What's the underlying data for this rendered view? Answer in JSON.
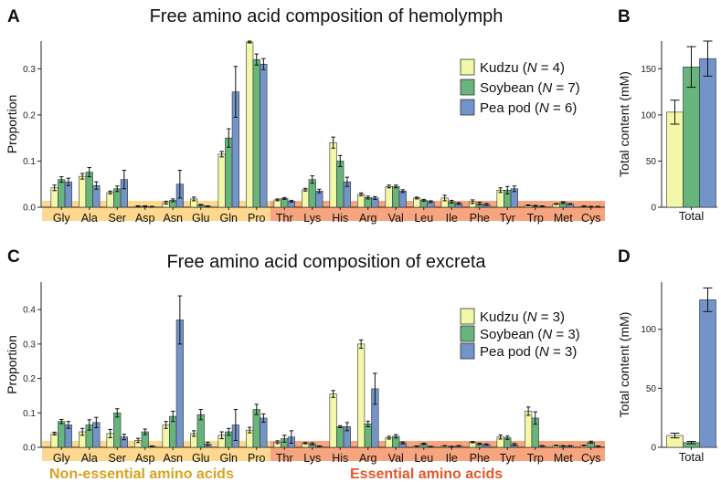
{
  "colors": {
    "kudzu": "#f3f7a8",
    "soybean": "#67b47c",
    "peapod": "#7394c8",
    "nonessential_band": "#fdd88e",
    "essential_band": "#f7a57e",
    "nonessential_text": "#d8a21c",
    "essential_text": "#e5572a"
  },
  "labels": {
    "nonessential": "Non-essential amino acids",
    "essential": "Essential amino acids"
  },
  "chart_data": [
    {
      "panel": "A",
      "type": "bar",
      "title": "Free amino acid composition of hemolymph",
      "ylabel": "Proportion",
      "xlabel": "",
      "ylim": [
        0,
        0.36
      ],
      "yticks": [
        "0.0",
        "0.1",
        "0.2",
        "0.3"
      ],
      "categories": [
        "Gly",
        "Ala",
        "Ser",
        "Asp",
        "Asn",
        "Glu",
        "Gln",
        "Pro",
        "Thr",
        "Lys",
        "His",
        "Arg",
        "Val",
        "Leu",
        "Ile",
        "Phe",
        "Tyr",
        "Trp",
        "Met",
        "Cys"
      ],
      "legend": {
        "position": "top-right",
        "entries": [
          {
            "pre": "Kudzu (",
            "n": "N",
            "post": " = 4)"
          },
          {
            "pre": "Soybean (",
            "n": "N",
            "post": " = 7)"
          },
          {
            "pre": "Pea pod (",
            "n": "N",
            "post": " = 6)"
          }
        ]
      },
      "series": [
        {
          "values": [
            0.042,
            0.067,
            0.032,
            0.002,
            0.01,
            0.018,
            0.115,
            0.358,
            0.016,
            0.038,
            0.14,
            0.028,
            0.045,
            0.02,
            0.02,
            0.012,
            0.037,
            0.004,
            0.007,
            0.002
          ],
          "errors": [
            0.006,
            0.006,
            0.003,
            0.001,
            0.003,
            0.004,
            0.006,
            0.002,
            0.002,
            0.003,
            0.012,
            0.003,
            0.003,
            0.002,
            0.006,
            0.004,
            0.005,
            0.001,
            0.001,
            0.001
          ]
        },
        {
          "values": [
            0.06,
            0.076,
            0.04,
            0.002,
            0.015,
            0.005,
            0.15,
            0.32,
            0.019,
            0.06,
            0.1,
            0.021,
            0.045,
            0.015,
            0.012,
            0.008,
            0.037,
            0.003,
            0.01,
            0.001
          ],
          "errors": [
            0.006,
            0.01,
            0.006,
            0.001,
            0.003,
            0.001,
            0.02,
            0.012,
            0.002,
            0.008,
            0.012,
            0.003,
            0.003,
            0.002,
            0.003,
            0.003,
            0.008,
            0.001,
            0.002,
            0.001
          ]
        },
        {
          "values": [
            0.055,
            0.047,
            0.06,
            0.001,
            0.05,
            0.002,
            0.25,
            0.31,
            0.013,
            0.035,
            0.055,
            0.02,
            0.035,
            0.012,
            0.008,
            0.006,
            0.04,
            0.002,
            0.007,
            0.001
          ],
          "errors": [
            0.008,
            0.008,
            0.02,
            0.001,
            0.03,
            0.001,
            0.055,
            0.012,
            0.002,
            0.004,
            0.01,
            0.003,
            0.003,
            0.002,
            0.002,
            0.002,
            0.006,
            0.001,
            0.001,
            0.001
          ]
        }
      ]
    },
    {
      "panel": "B",
      "type": "bar",
      "title": "",
      "ylabel": "Total content (mM)",
      "xlabel": "",
      "ylim": [
        0,
        180
      ],
      "yticks": [
        "0",
        "50",
        "100",
        "150"
      ],
      "categories": [
        "Total"
      ],
      "series": [
        {
          "values": [
            103
          ],
          "errors": [
            13
          ]
        },
        {
          "values": [
            152
          ],
          "errors": [
            22
          ]
        },
        {
          "values": [
            161
          ],
          "errors": [
            19
          ]
        }
      ]
    },
    {
      "panel": "C",
      "type": "bar",
      "title": "Free amino acid composition of excreta",
      "ylabel": "Proportion",
      "xlabel": "",
      "ylim": [
        0,
        0.48
      ],
      "yticks": [
        "0.0",
        "0.1",
        "0.2",
        "0.3",
        "0.4"
      ],
      "categories": [
        "Gly",
        "Ala",
        "Ser",
        "Asp",
        "Asn",
        "Glu",
        "Gln",
        "Pro",
        "Thr",
        "Lys",
        "His",
        "Arg",
        "Val",
        "Leu",
        "Ile",
        "Phe",
        "Tyr",
        "Trp",
        "Met",
        "Cys"
      ],
      "legend": {
        "position": "top-right",
        "entries": [
          {
            "pre": "Kudzu (",
            "n": "N",
            "post": " = 3)"
          },
          {
            "pre": "Soybean (",
            "n": "N",
            "post": " = 3)"
          },
          {
            "pre": "Pea pod (",
            "n": "N",
            "post": " = 3)"
          }
        ]
      },
      "series": [
        {
          "values": [
            0.04,
            0.045,
            0.04,
            0.02,
            0.065,
            0.04,
            0.035,
            0.05,
            0.015,
            0.012,
            0.155,
            0.3,
            0.028,
            0.003,
            0.004,
            0.015,
            0.03,
            0.105,
            0.005,
            0.005
          ],
          "errors": [
            0.004,
            0.01,
            0.012,
            0.006,
            0.01,
            0.008,
            0.01,
            0.008,
            0.004,
            0.002,
            0.01,
            0.012,
            0.004,
            0.001,
            0.001,
            0.002,
            0.006,
            0.012,
            0.001,
            0.001
          ]
        },
        {
          "values": [
            0.075,
            0.065,
            0.1,
            0.045,
            0.09,
            0.095,
            0.045,
            0.11,
            0.025,
            0.01,
            0.06,
            0.068,
            0.032,
            0.01,
            0.002,
            0.01,
            0.028,
            0.085,
            0.004,
            0.015
          ],
          "errors": [
            0.006,
            0.015,
            0.012,
            0.008,
            0.015,
            0.015,
            0.01,
            0.015,
            0.01,
            0.003,
            0.003,
            0.008,
            0.005,
            0.002,
            0.001,
            0.002,
            0.005,
            0.018,
            0.001,
            0.003
          ]
        },
        {
          "values": [
            0.065,
            0.072,
            0.03,
            0.003,
            0.37,
            0.01,
            0.065,
            0.085,
            0.03,
            0.003,
            0.06,
            0.17,
            0.013,
            0.002,
            0.004,
            0.008,
            0.008,
            0.004,
            0.004,
            0.003
          ],
          "errors": [
            0.01,
            0.015,
            0.008,
            0.001,
            0.07,
            0.005,
            0.045,
            0.012,
            0.018,
            0.001,
            0.012,
            0.045,
            0.003,
            0.001,
            0.001,
            0.002,
            0.003,
            0.001,
            0.001,
            0.001
          ]
        }
      ]
    },
    {
      "panel": "D",
      "type": "bar",
      "title": "",
      "ylabel": "Total content (mM)",
      "xlabel": "",
      "ylim": [
        0,
        140
      ],
      "yticks": [
        "0",
        "50",
        "100"
      ],
      "categories": [
        "Total"
      ],
      "series": [
        {
          "values": [
            10
          ],
          "errors": [
            2
          ]
        },
        {
          "values": [
            4
          ],
          "errors": [
            1
          ]
        },
        {
          "values": [
            125
          ],
          "errors": [
            10
          ]
        }
      ]
    }
  ]
}
